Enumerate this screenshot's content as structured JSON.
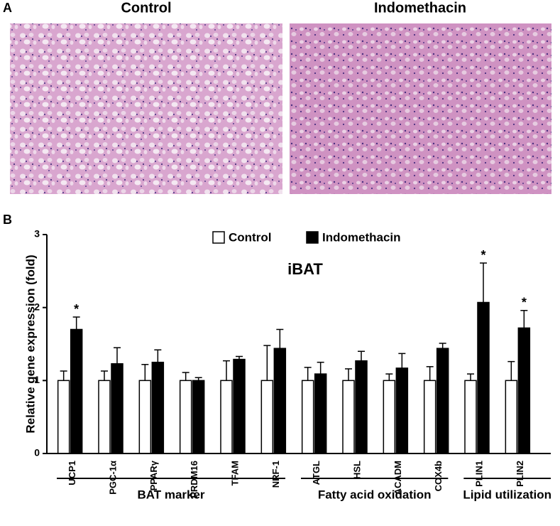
{
  "figure": {
    "panel_a": {
      "label": "A",
      "images": [
        {
          "title": "Control"
        },
        {
          "title": "Indomethacin"
        }
      ]
    },
    "panel_b": {
      "label": "B"
    }
  },
  "chart_data": {
    "type": "bar",
    "title": "iBAT",
    "y_label": "Relative gene expression (fold)",
    "groups": [
      {
        "label": "BAT marker",
        "categories": [
          "UCP1",
          "PGC-1α",
          "PPARγ",
          "PRDM16",
          "TFAM",
          "NRF-1"
        ]
      },
      {
        "label": "Fatty acid oxidation",
        "categories": [
          "ATGL",
          "HSL",
          "ACADM",
          "COX4b"
        ]
      },
      {
        "label": "Lipid utilization",
        "categories": [
          "PLIN1",
          "PLIN2"
        ]
      }
    ],
    "series": [
      {
        "name": "Control",
        "color": "#ffffff",
        "values": [
          1,
          1,
          1,
          1,
          1,
          1,
          1,
          1,
          1,
          1,
          1,
          1
        ],
        "errors": [
          0.13,
          0.13,
          0.22,
          0.11,
          0.27,
          0.48,
          0.18,
          0.16,
          0.09,
          0.19,
          0.09,
          0.26
        ]
      },
      {
        "name": "Indomethacin",
        "color": "#000000",
        "values": [
          1.7,
          1.23,
          1.25,
          1.0,
          1.29,
          1.44,
          1.09,
          1.27,
          1.17,
          1.44,
          2.07,
          1.72
        ],
        "errors": [
          0.17,
          0.22,
          0.17,
          0.04,
          0.04,
          0.26,
          0.16,
          0.13,
          0.2,
          0.07,
          0.54,
          0.24
        ],
        "markers": [
          "*",
          null,
          null,
          null,
          null,
          null,
          null,
          null,
          null,
          null,
          "*",
          "*"
        ]
      }
    ],
    "ylim": [
      0,
      3
    ],
    "yticks": [
      0,
      1,
      2,
      3
    ],
    "legend": "top"
  }
}
